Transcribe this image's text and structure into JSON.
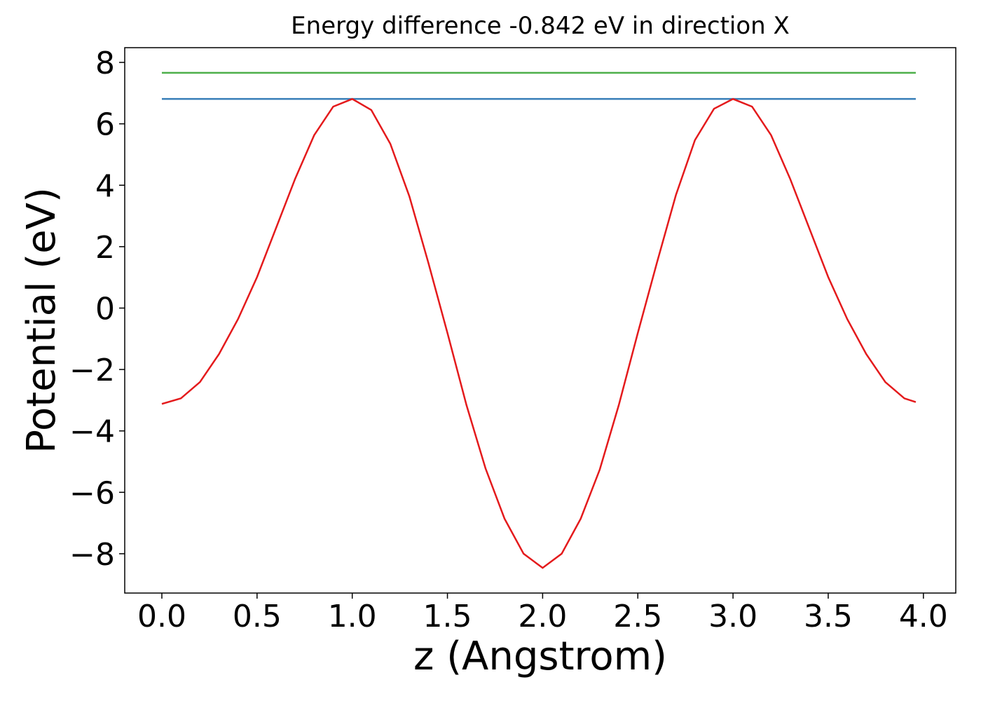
{
  "chart_data": {
    "type": "line",
    "title": "Energy difference -0.842 eV in direction X",
    "xlabel": "z (Angstrom)",
    "ylabel": "Potential (eV)",
    "xlim": [
      -0.195,
      4.17
    ],
    "ylim": [
      -9.28,
      8.48
    ],
    "xticks": [
      {
        "value": 0,
        "label": "0.0"
      },
      0.5,
      {
        "value": 1,
        "label": "1.0"
      },
      1.5,
      {
        "value": 2,
        "label": "2.0"
      },
      2.5,
      {
        "value": 3,
        "label": "3.0"
      },
      3.5,
      {
        "value": 4,
        "label": "4.0"
      }
    ],
    "yticks": [
      {
        "value": -8,
        "label": "−8"
      },
      {
        "value": -6,
        "label": "−6"
      },
      {
        "value": -4,
        "label": "−4"
      },
      {
        "value": -2,
        "label": "−2"
      },
      0,
      2,
      4,
      6,
      8
    ],
    "grid": false,
    "series": [
      {
        "color": "#e41a1c",
        "x": [
          0,
          0.1,
          0.2,
          0.3,
          0.4,
          0.5,
          0.6,
          0.7,
          0.8,
          0.9,
          1.0,
          1.1,
          1.2,
          1.3,
          1.4,
          1.5,
          1.6,
          1.7,
          1.8,
          1.9,
          2.0,
          2.1,
          2.2,
          2.3,
          2.4,
          2.5,
          2.6,
          2.7,
          2.8,
          2.9,
          3.0,
          3.1,
          3.2,
          3.3,
          3.4,
          3.5,
          3.6,
          3.7,
          3.8,
          3.9,
          3.96
        ],
        "values": [
          -3.12,
          -2.94,
          -2.41,
          -1.5,
          -0.36,
          1.01,
          2.61,
          4.21,
          5.63,
          6.56,
          6.81,
          6.45,
          5.35,
          3.64,
          1.47,
          -0.81,
          -3.16,
          -5.22,
          -6.86,
          -8.0,
          -8.46,
          -8.0,
          -6.86,
          -5.26,
          -3.16,
          -0.81,
          1.47,
          3.68,
          5.47,
          6.49,
          6.81,
          6.56,
          5.63,
          4.21,
          2.61,
          1.01,
          -0.36,
          -1.5,
          -2.41,
          -2.94,
          -3.06
        ]
      },
      {
        "color": "#377eb8",
        "x": [
          0,
          3.96
        ],
        "values": [
          6.81,
          6.81
        ]
      },
      {
        "color": "#4daf4a",
        "x": [
          0,
          3.96
        ],
        "values": [
          7.66,
          7.66
        ]
      }
    ]
  }
}
